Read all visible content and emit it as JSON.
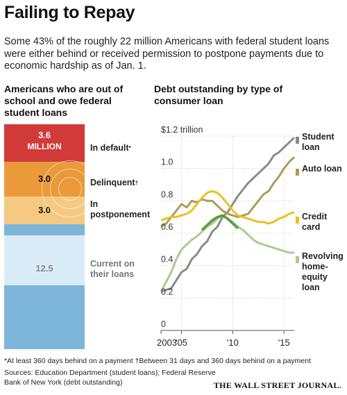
{
  "title": "Failing to Repay",
  "subtitle": "Some 43% of the roughly 22 million Americans with federal student loans were either behind or received permission to postpone payments due to economic hardship as of Jan. 1.",
  "left_chart": {
    "heading": "Americans who are out of school and owe federal student loans",
    "segments": [
      {
        "value_line1": "3.6",
        "value_line2": "MILLION",
        "label": "In default",
        "mark": "*",
        "color": "#d23a3a"
      },
      {
        "value_line1": "3.0",
        "value_line2": "",
        "label": "Delinquent",
        "mark": "†",
        "color": "#ea9a3a"
      },
      {
        "value_line1": "3.0",
        "value_line2": "",
        "label": "In postponement",
        "mark": "",
        "color": "#f6c982"
      },
      {
        "value_line1": "12.5",
        "value_line2": "",
        "label": "Current on their loans",
        "mark": "",
        "color": "#7eb6d9"
      }
    ]
  },
  "right_chart": {
    "heading": "Debt outstanding by type of consumer loan",
    "y_tick_labels": [
      "0",
      "0.2",
      "0.4",
      "0.6",
      "0.8",
      "1.0",
      "$1.2 trillion"
    ],
    "x_tick_labels": [
      "2003",
      "'05",
      "'10",
      "'15"
    ]
  },
  "chart_data": {
    "type": "line",
    "title": "Debt outstanding by type of consumer loan",
    "ylabel": "$ trillion",
    "ylim": [
      0,
      1.2
    ],
    "xlim": [
      2003,
      2016
    ],
    "series": [
      {
        "name": "Student loan",
        "color": "#8a8a8a",
        "x": [
          2003,
          2003.5,
          2004,
          2004.5,
          2005,
          2005.5,
          2006,
          2006.5,
          2007,
          2007.5,
          2008,
          2008.5,
          2009,
          2009.5,
          2010,
          2010.5,
          2011,
          2011.5,
          2012,
          2012.5,
          2013,
          2013.5,
          2014,
          2014.5,
          2015,
          2015.5,
          2016
        ],
        "y": [
          0.24,
          0.25,
          0.26,
          0.31,
          0.36,
          0.38,
          0.44,
          0.47,
          0.52,
          0.55,
          0.61,
          0.64,
          0.7,
          0.73,
          0.78,
          0.83,
          0.87,
          0.91,
          0.94,
          0.97,
          1.0,
          1.03,
          1.08,
          1.1,
          1.13,
          1.16,
          1.19
        ]
      },
      {
        "name": "Auto loan",
        "color": "#b09a55",
        "x": [
          2003,
          2003.5,
          2004,
          2004.5,
          2005,
          2005.5,
          2006,
          2006.5,
          2007,
          2007.5,
          2008,
          2008.5,
          2009,
          2009.5,
          2010,
          2010.5,
          2011,
          2011.5,
          2012,
          2012.5,
          2013,
          2013.5,
          2014,
          2014.5,
          2015,
          2015.5,
          2016
        ],
        "y": [
          0.64,
          0.66,
          0.7,
          0.74,
          0.78,
          0.76,
          0.8,
          0.79,
          0.81,
          0.8,
          0.8,
          0.77,
          0.74,
          0.72,
          0.71,
          0.7,
          0.71,
          0.72,
          0.76,
          0.8,
          0.84,
          0.86,
          0.91,
          0.95,
          1.0,
          1.04,
          1.07
        ]
      },
      {
        "name": "Credit card",
        "color": "#e8c21f",
        "x": [
          2003,
          2003.5,
          2004,
          2004.5,
          2005,
          2005.5,
          2006,
          2006.5,
          2007,
          2007.5,
          2008,
          2008.5,
          2009,
          2009.5,
          2010,
          2010.5,
          2011,
          2011.5,
          2012,
          2012.5,
          2013,
          2013.5,
          2014,
          2014.5,
          2015,
          2015.5,
          2016
        ],
        "y": [
          0.68,
          0.69,
          0.7,
          0.7,
          0.71,
          0.72,
          0.74,
          0.78,
          0.82,
          0.85,
          0.86,
          0.85,
          0.82,
          0.78,
          0.74,
          0.71,
          0.7,
          0.69,
          0.68,
          0.67,
          0.67,
          0.66,
          0.67,
          0.69,
          0.7,
          0.72,
          0.73
        ]
      },
      {
        "name": "Revolving home-equity loan",
        "color": "#a8cc8f",
        "x": [
          2003,
          2003.5,
          2004,
          2004.5,
          2005,
          2005.5,
          2006,
          2006.5,
          2007,
          2007.5,
          2008,
          2008.5,
          2009,
          2009.5,
          2010,
          2010.5,
          2011,
          2011.5,
          2012,
          2012.5,
          2013,
          2013.5,
          2014,
          2014.5,
          2015,
          2015.5,
          2016
        ],
        "y": [
          0.24,
          0.3,
          0.36,
          0.44,
          0.5,
          0.53,
          0.56,
          0.58,
          0.61,
          0.64,
          0.66,
          0.69,
          0.71,
          0.69,
          0.67,
          0.64,
          0.62,
          0.59,
          0.56,
          0.54,
          0.53,
          0.52,
          0.51,
          0.5,
          0.49,
          0.48,
          0.48
        ]
      },
      {
        "name": "Revolving home-equity loan (2008-10 peak)",
        "color": "#5a9c3e",
        "x": [
          2007,
          2007.5,
          2008,
          2008.5,
          2009,
          2009.5,
          2010,
          2010.5
        ],
        "y": [
          0.62,
          0.65,
          0.68,
          0.7,
          0.71,
          0.69,
          0.66,
          0.63
        ]
      }
    ]
  },
  "legend_labels": {
    "student": "Student loan",
    "auto": "Auto loan",
    "credit": "Credit card",
    "heloc": "Revolving home-equity loan"
  },
  "footnote": "*At least 360 days behind on a payment  †Between 31 days and 360 days behind on a payment",
  "sources": "Sources: Education Department (student loans); Federal Reserve Bank of New York (debt outstanding)",
  "logo": "THE WALL STREET JOURNAL."
}
